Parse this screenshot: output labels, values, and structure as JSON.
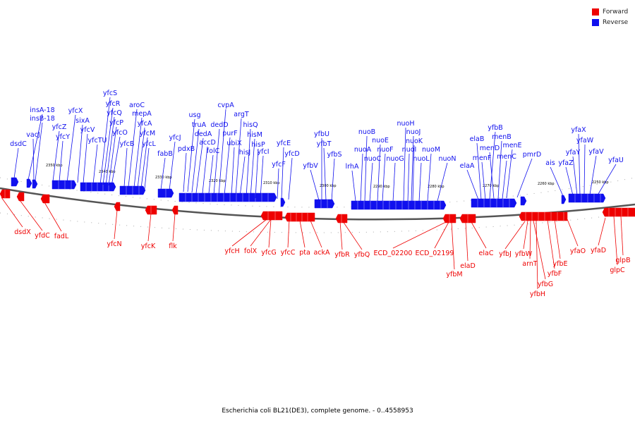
{
  "legend": {
    "forward_label": "Forward",
    "reverse_label": "Reverse",
    "forward_color": "#ee0000",
    "reverse_color": "#1010ee"
  },
  "caption": "Escherichia coli BL21(DE3), complete genome. - 0..4558953",
  "scale": {
    "unit": "kbp",
    "ticks": [
      "2350 kbp",
      "2340 kbp",
      "2330 kbp",
      "2320 kbp",
      "2310 kbp",
      "2300 kbp",
      "2290 kbp",
      "2280 kbp",
      "2270 kbp",
      "2260 kbp",
      "2250 kbp"
    ]
  },
  "reverse_genes": [
    "dsdC",
    "insA-18",
    "insB-18",
    "vacJ",
    "yfcZ",
    "yfcY",
    "yfcX",
    "sixA",
    "yfcV",
    "yfcTU",
    "yfcS",
    "yfcR",
    "yfcQ",
    "yfcP",
    "yfcO",
    "yfcB",
    "aroC",
    "mepA",
    "yfcA",
    "yfcM",
    "yfcL",
    "fabB",
    "yfcJ",
    "pdxB",
    "usg",
    "truA",
    "dedA",
    "accD",
    "folC",
    "dedD",
    "cvpA",
    "purF",
    "ubiX",
    "argT",
    "hisJ",
    "hisQ",
    "hisM",
    "hisP",
    "yfcI",
    "yfcF",
    "yfcE",
    "yfcD",
    "yfbV",
    "yfbU",
    "yfbT",
    "yfbS",
    "lrhA",
    "nuoA",
    "nuoB",
    "nuoC",
    "nuoE",
    "nuoF",
    "nuoG",
    "nuoH",
    "nuoI",
    "nuoJ",
    "nuoK",
    "nuoL",
    "nuoM",
    "nuoN",
    "elaA",
    "elaB",
    "menF",
    "yfbB",
    "menD",
    "menB",
    "menC",
    "menE",
    "pmrD",
    "ais",
    "yfaZ",
    "yfaY",
    "yfaX",
    "yfaW",
    "yfaV",
    "yfaU"
  ],
  "forward_genes": [
    "dsdX",
    "yfdC",
    "fadL",
    "yfcN",
    "yfcK",
    "flk",
    "yfcH",
    "folX",
    "yfcG",
    "yfcC",
    "pta",
    "ackA",
    "yfbR",
    "yfbQ",
    "ECD_02200",
    "ECD_02199",
    "yfbM",
    "elaD",
    "elaC",
    "yfbJ",
    "yfbW",
    "arnT",
    "yfbG",
    "yfbH",
    "yfbF",
    "yfbE",
    "yfaO",
    "yfaD",
    "glpC",
    "glpB"
  ]
}
